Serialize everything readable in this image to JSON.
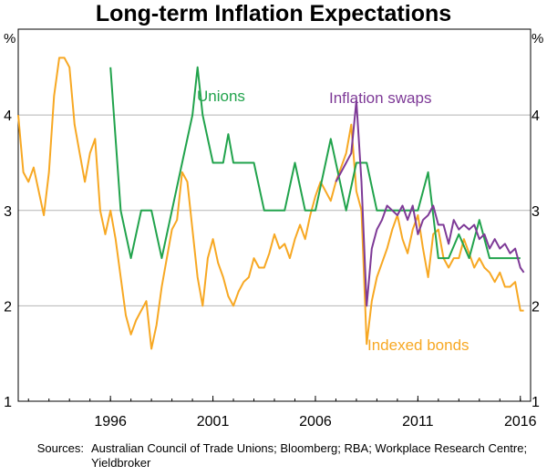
{
  "chart_data": {
    "type": "line",
    "title": "Long-term Inflation Expectations",
    "ylabel_left": "%",
    "ylabel_right": "%",
    "ylim": [
      1,
      4.9
    ],
    "xlim": [
      1991.5,
      2016.5
    ],
    "y_ticks": [
      "1",
      "2",
      "3",
      "4"
    ],
    "x_ticks": [
      "1996",
      "2001",
      "2006",
      "2011",
      "2016"
    ],
    "series": [
      {
        "name": "Indexed bonds",
        "color": "#f7a823",
        "x": [
          1991.5,
          1991.75,
          1992.0,
          1992.25,
          1992.5,
          1992.75,
          1993.0,
          1993.25,
          1993.5,
          1993.75,
          1994.0,
          1994.25,
          1994.5,
          1994.75,
          1995.0,
          1995.25,
          1995.5,
          1995.75,
          1996.0,
          1996.25,
          1996.5,
          1996.75,
          1997.0,
          1997.25,
          1997.5,
          1997.75,
          1998.0,
          1998.25,
          1998.5,
          1998.75,
          1999.0,
          1999.25,
          1999.5,
          1999.75,
          2000.0,
          2000.25,
          2000.5,
          2000.75,
          2001.0,
          2001.25,
          2001.5,
          2001.75,
          2002.0,
          2002.25,
          2002.5,
          2002.75,
          2003.0,
          2003.25,
          2003.5,
          2003.75,
          2004.0,
          2004.25,
          2004.5,
          2004.75,
          2005.0,
          2005.25,
          2005.5,
          2005.75,
          2006.0,
          2006.25,
          2006.5,
          2006.75,
          2007.0,
          2007.25,
          2007.5,
          2007.75,
          2008.0,
          2008.25,
          2008.5,
          2008.75,
          2009.0,
          2009.25,
          2009.5,
          2009.75,
          2010.0,
          2010.25,
          2010.5,
          2010.75,
          2011.0,
          2011.25,
          2011.5,
          2011.75,
          2012.0,
          2012.25,
          2012.5,
          2012.75,
          2013.0,
          2013.25,
          2013.5,
          2013.75,
          2014.0,
          2014.25,
          2014.5,
          2014.75,
          2015.0,
          2015.25,
          2015.5,
          2015.75,
          2016.0,
          2016.17
        ],
        "values": [
          4.0,
          3.4,
          3.3,
          3.45,
          3.2,
          2.95,
          3.4,
          4.2,
          4.6,
          4.6,
          4.5,
          3.9,
          3.6,
          3.3,
          3.6,
          3.75,
          3.0,
          2.75,
          3.0,
          2.7,
          2.3,
          1.9,
          1.7,
          1.85,
          1.95,
          2.05,
          1.55,
          1.8,
          2.2,
          2.5,
          2.8,
          2.9,
          3.4,
          3.3,
          2.8,
          2.3,
          2.0,
          2.5,
          2.7,
          2.45,
          2.3,
          2.1,
          2.0,
          2.15,
          2.25,
          2.3,
          2.5,
          2.4,
          2.4,
          2.55,
          2.75,
          2.6,
          2.65,
          2.5,
          2.7,
          2.85,
          2.7,
          2.95,
          3.15,
          3.3,
          3.2,
          3.1,
          3.3,
          3.45,
          3.6,
          3.9,
          3.2,
          3.0,
          1.6,
          2.05,
          2.3,
          2.45,
          2.6,
          2.8,
          2.95,
          2.7,
          2.55,
          2.8,
          2.95,
          2.6,
          2.3,
          2.75,
          2.8,
          2.5,
          2.4,
          2.5,
          2.5,
          2.7,
          2.55,
          2.4,
          2.5,
          2.4,
          2.35,
          2.25,
          2.35,
          2.2,
          2.2,
          2.25,
          1.95,
          1.95
        ]
      },
      {
        "name": "Unions",
        "color": "#21a34c",
        "x": [
          1996.0,
          1996.5,
          1997.0,
          1997.5,
          1998.0,
          1998.5,
          1999.0,
          1999.5,
          2000.0,
          2000.25,
          2000.5,
          2001.0,
          2001.5,
          2001.75,
          2002.0,
          2002.5,
          2003.0,
          2003.5,
          2004.0,
          2004.5,
          2005.0,
          2005.5,
          2006.0,
          2006.5,
          2006.75,
          2007.0,
          2007.5,
          2008.0,
          2008.5,
          2009.0,
          2009.5,
          2010.0,
          2010.5,
          2011.0,
          2011.5,
          2012.0,
          2012.5,
          2013.0,
          2013.5,
          2014.0,
          2014.5,
          2015.0,
          2015.5,
          2016.0
        ],
        "values": [
          4.5,
          3.0,
          2.5,
          3.0,
          3.0,
          2.5,
          3.0,
          3.5,
          4.0,
          4.5,
          4.0,
          3.5,
          3.5,
          3.8,
          3.5,
          3.5,
          3.5,
          3.0,
          3.0,
          3.0,
          3.5,
          3.0,
          3.0,
          3.5,
          3.75,
          3.5,
          3.0,
          3.5,
          3.5,
          3.0,
          3.0,
          3.0,
          3.0,
          3.0,
          3.4,
          2.5,
          2.5,
          2.75,
          2.5,
          2.9,
          2.5,
          2.5,
          2.5,
          2.5
        ]
      },
      {
        "name": "Inflation swaps",
        "color": "#7e3a97",
        "x": [
          2007.0,
          2007.25,
          2007.5,
          2007.75,
          2008.0,
          2008.25,
          2008.5,
          2008.75,
          2009.0,
          2009.25,
          2009.5,
          2009.75,
          2010.0,
          2010.25,
          2010.5,
          2010.75,
          2011.0,
          2011.25,
          2011.5,
          2011.75,
          2012.0,
          2012.25,
          2012.5,
          2012.75,
          2013.0,
          2013.25,
          2013.5,
          2013.75,
          2014.0,
          2014.25,
          2014.5,
          2014.75,
          2015.0,
          2015.25,
          2015.5,
          2015.75,
          2016.0,
          2016.17
        ],
        "values": [
          3.3,
          3.4,
          3.5,
          3.6,
          4.15,
          3.3,
          2.0,
          2.6,
          2.8,
          2.9,
          3.05,
          3.0,
          2.95,
          3.05,
          2.9,
          3.05,
          2.75,
          2.9,
          2.95,
          3.05,
          2.85,
          2.85,
          2.65,
          2.9,
          2.8,
          2.85,
          2.8,
          2.85,
          2.7,
          2.75,
          2.6,
          2.7,
          2.6,
          2.65,
          2.55,
          2.6,
          2.4,
          2.35
        ]
      }
    ],
    "annotations": [
      "Unions",
      "Inflation swaps",
      "Indexed bonds"
    ]
  },
  "sources": {
    "heading": "Sources:",
    "text": "Australian Council of Trade Unions; Bloomberg; RBA; Workplace Research Centre; Yieldbroker"
  }
}
